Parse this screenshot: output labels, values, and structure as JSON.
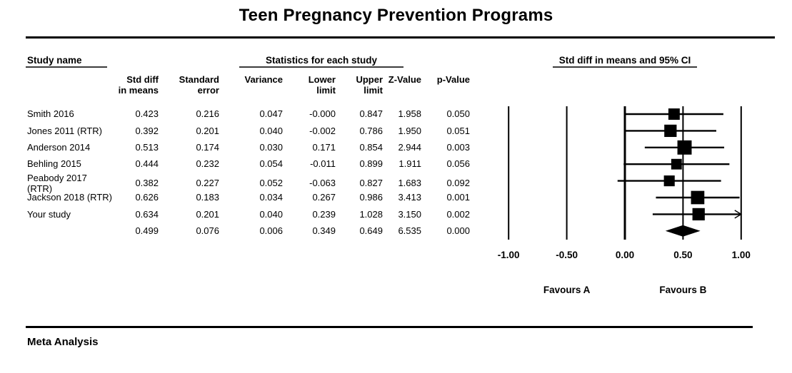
{
  "title": "Teen Pregnancy Prevention Programs",
  "section_headers": {
    "study_name": "Study name",
    "statistics": "Statistics for each study",
    "plot": "Std diff in means and 95% CI"
  },
  "table": {
    "columns": [
      {
        "line1": "Std diff",
        "line2": "in means"
      },
      {
        "line1": "Standard",
        "line2": "error"
      },
      {
        "line1": "",
        "line2": "Variance"
      },
      {
        "line1": "Lower",
        "line2": "limit"
      },
      {
        "line1": "Upper",
        "line2": "limit"
      },
      {
        "line1": "",
        "line2": "Z-Value"
      },
      {
        "line1": "",
        "line2": "p-Value"
      }
    ],
    "rows": [
      {
        "study": "Smith 2016",
        "values": [
          "0.423",
          "0.216",
          "0.047",
          "-0.000",
          "0.847",
          "1.958",
          "0.050"
        ]
      },
      {
        "study": "Jones 2011 (RTR)",
        "values": [
          "0.392",
          "0.201",
          "0.040",
          "-0.002",
          "0.786",
          "1.950",
          "0.051"
        ]
      },
      {
        "study": "Anderson 2014",
        "values": [
          "0.513",
          "0.174",
          "0.030",
          "0.171",
          "0.854",
          "2.944",
          "0.003"
        ]
      },
      {
        "study": "Behling 2015",
        "values": [
          "0.444",
          "0.232",
          "0.054",
          "-0.011",
          "0.899",
          "1.911",
          "0.056"
        ]
      },
      {
        "study": "Peabody 2017 (RTR)",
        "values": [
          "0.382",
          "0.227",
          "0.052",
          "-0.063",
          "0.827",
          "1.683",
          "0.092"
        ]
      },
      {
        "study": "Jackson 2018 (RTR)",
        "values": [
          "0.626",
          "0.183",
          "0.034",
          "0.267",
          "0.986",
          "3.413",
          "0.001"
        ]
      },
      {
        "study": "Your study",
        "values": [
          "0.634",
          "0.201",
          "0.040",
          "0.239",
          "1.028",
          "3.150",
          "0.002"
        ]
      },
      {
        "study": "",
        "values": [
          "0.499",
          "0.076",
          "0.006",
          "0.349",
          "0.649",
          "6.535",
          "0.000"
        ]
      }
    ]
  },
  "footer_label": "Meta Analysis",
  "colors": {
    "ink": "#000000",
    "background": "#ffffff"
  },
  "chart_data": {
    "type": "forest",
    "title": "Teen Pregnancy Prevention Programs",
    "effect_label": "Std diff in means and 95% CI",
    "xlim": [
      -1.0,
      1.0
    ],
    "ticks": [
      {
        "value": -1.0,
        "label": "-1.00"
      },
      {
        "value": -0.5,
        "label": "-0.50"
      },
      {
        "value": 0.0,
        "label": "0.00"
      },
      {
        "value": 0.5,
        "label": "0.50"
      },
      {
        "value": 1.0,
        "label": "1.00"
      }
    ],
    "favours": {
      "left": "Favours A",
      "right": "Favours B"
    },
    "studies": [
      {
        "name": "Smith 2016",
        "std_diff": 0.423,
        "std_err": 0.216,
        "variance": 0.047,
        "lower": -0.0,
        "upper": 0.847,
        "z": 1.958,
        "p": 0.05
      },
      {
        "name": "Jones 2011 (RTR)",
        "std_diff": 0.392,
        "std_err": 0.201,
        "variance": 0.04,
        "lower": -0.002,
        "upper": 0.786,
        "z": 1.95,
        "p": 0.051
      },
      {
        "name": "Anderson 2014",
        "std_diff": 0.513,
        "std_err": 0.174,
        "variance": 0.03,
        "lower": 0.171,
        "upper": 0.854,
        "z": 2.944,
        "p": 0.003
      },
      {
        "name": "Behling 2015",
        "std_diff": 0.444,
        "std_err": 0.232,
        "variance": 0.054,
        "lower": -0.011,
        "upper": 0.899,
        "z": 1.911,
        "p": 0.056
      },
      {
        "name": "Peabody 2017 (RTR)",
        "std_diff": 0.382,
        "std_err": 0.227,
        "variance": 0.052,
        "lower": -0.063,
        "upper": 0.827,
        "z": 1.683,
        "p": 0.092
      },
      {
        "name": "Jackson 2018 (RTR)",
        "std_diff": 0.626,
        "std_err": 0.183,
        "variance": 0.034,
        "lower": 0.267,
        "upper": 0.986,
        "z": 3.413,
        "p": 0.001
      },
      {
        "name": "Your study",
        "std_diff": 0.634,
        "std_err": 0.201,
        "variance": 0.04,
        "lower": 0.239,
        "upper": 1.028,
        "z": 3.15,
        "p": 0.002
      }
    ],
    "summary": {
      "std_diff": 0.499,
      "std_err": 0.076,
      "variance": 0.006,
      "lower": 0.349,
      "upper": 0.649,
      "z": 6.535,
      "p": 0.0
    }
  }
}
